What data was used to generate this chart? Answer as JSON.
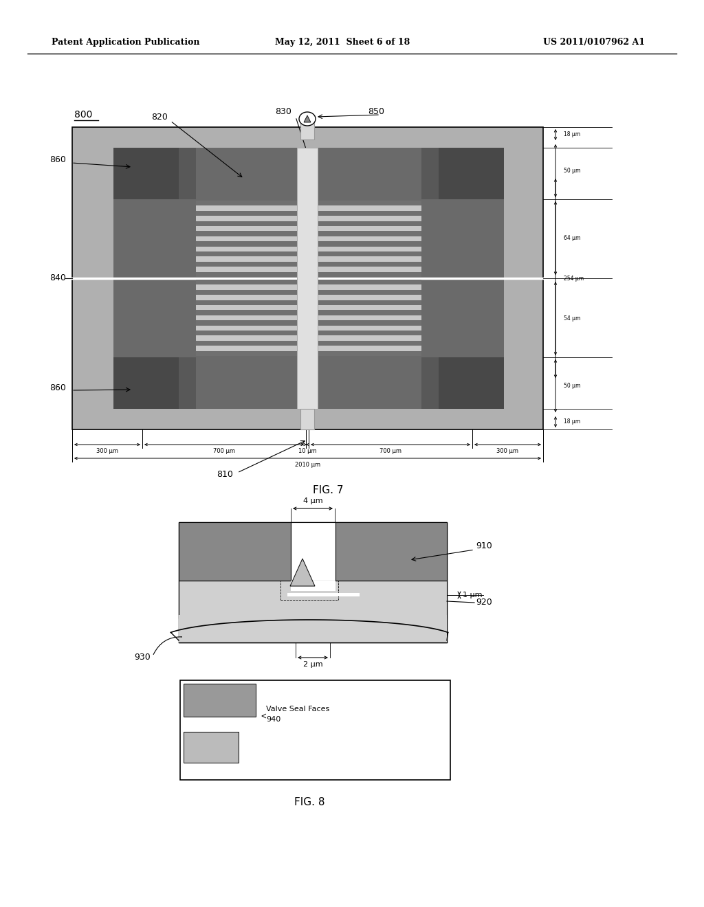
{
  "header_left": "Patent Application Publication",
  "header_mid": "May 12, 2011  Sheet 6 of 18",
  "header_right": "US 2011/0107962 A1",
  "fig7_label": "FIG. 7",
  "fig8_label": "FIG. 8",
  "bg_color": "#ffffff",
  "label_800": "800",
  "label_810": "810",
  "label_820": "820",
  "label_830": "830",
  "label_840": "840",
  "label_850": "850",
  "label_860": "860",
  "label_910": "910",
  "label_920": "920",
  "label_930": "930",
  "label_940": "940",
  "dim_18um_a": "18 μm",
  "dim_50um_a": "50 μm",
  "dim_64um": "64 μm",
  "dim_254um": "254 μm",
  "dim_54um": "54 μm",
  "dim_50um_b": "50 μm",
  "dim_18um_b": "18 μm",
  "dim_300um_a": "300 μm",
  "dim_700um_a": "700 μm",
  "dim_10um": "10 μm",
  "dim_700um_b": "700 μm",
  "dim_300um_b": "300 μm",
  "dim_2010um": "2010 μm",
  "dim_4um": "4 μm",
  "dim_1um": "1 μm",
  "dim_2um": "2 μm",
  "valve_text": "Valve Seal Faces",
  "valve_940": "940",
  "outer_gray": "#b0b0b0",
  "dark_sq": "#484848",
  "mid_gray": "#6a6a6a",
  "stripe_dark": "#707070",
  "stripe_light": "#c8c8c8",
  "post_color": "#e0e0e0",
  "fig8_body_gray": "#b8b8b8",
  "fig8_dark_sq": "#888888",
  "fig8_inner_light": "#d0d0d0"
}
